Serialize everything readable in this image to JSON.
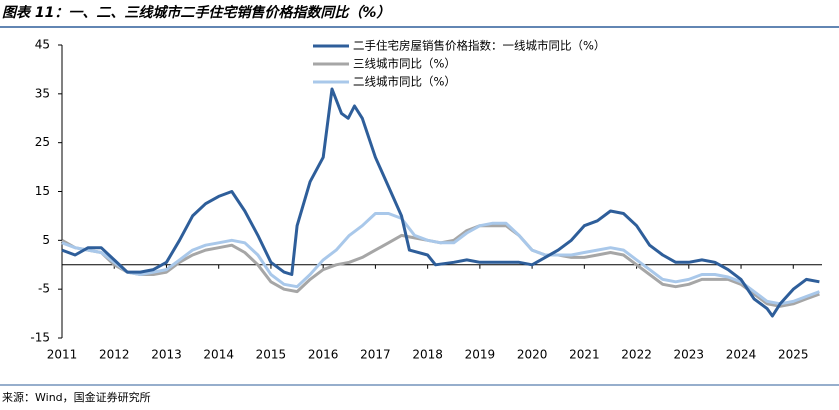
{
  "chart_data": {
    "type": "line",
    "title": "图表 11：一、二、三线城市二手住宅销售价格指数同比（%）",
    "source": "来源：Wind，国金证券研究所",
    "xlim": [
      2011,
      2025.55
    ],
    "xticks": [
      2011,
      2012,
      2013,
      2014,
      2015,
      2016,
      2017,
      2018,
      2019,
      2020,
      2021,
      2022,
      2023,
      2024,
      2025
    ],
    "ylim": [
      -15,
      45
    ],
    "yticks": [
      -15,
      -5,
      5,
      15,
      25,
      35,
      45
    ],
    "legend": "upper center",
    "series": [
      {
        "name": "二手住宅房屋销售价格指数：一线城市同比（%）",
        "color": "#2e5e9a",
        "width": 3,
        "x": [
          2011.0,
          2011.25,
          2011.5,
          2011.75,
          2012.0,
          2012.25,
          2012.5,
          2012.75,
          2013.0,
          2013.25,
          2013.5,
          2013.75,
          2014.0,
          2014.25,
          2014.5,
          2014.75,
          2015.0,
          2015.25,
          2015.4,
          2015.5,
          2015.75,
          2016.0,
          2016.17,
          2016.35,
          2016.48,
          2016.6,
          2016.75,
          2017.0,
          2017.25,
          2017.5,
          2017.65,
          2018.0,
          2018.15,
          2018.5,
          2018.75,
          2019.0,
          2019.5,
          2019.75,
          2020.0,
          2020.25,
          2020.5,
          2020.75,
          2021.0,
          2021.25,
          2021.5,
          2021.75,
          2022.0,
          2022.25,
          2022.5,
          2022.75,
          2023.0,
          2023.25,
          2023.5,
          2023.75,
          2024.0,
          2024.25,
          2024.5,
          2024.6,
          2024.75,
          2025.0,
          2025.25,
          2025.5
        ],
        "values": [
          3,
          2,
          3.5,
          3.5,
          1,
          -1.5,
          -1.5,
          -1,
          0.5,
          5,
          10,
          12.5,
          14,
          15,
          11,
          6,
          0.5,
          -1.5,
          -2,
          8,
          17,
          22,
          36,
          31,
          30,
          32.5,
          30,
          22,
          16,
          10,
          3,
          2,
          0,
          0.5,
          1,
          0.5,
          0.5,
          0.5,
          0,
          1.5,
          3,
          5,
          8,
          9,
          11,
          10.5,
          8,
          4,
          2,
          0.5,
          0.5,
          1,
          0.5,
          -1,
          -3,
          -7,
          -9,
          -10.5,
          -8,
          -5,
          -3,
          -3.5
        ]
      },
      {
        "name": "三线城市同比（%）",
        "color": "#a6a6a6",
        "width": 3,
        "x": [
          2011.0,
          2011.25,
          2011.5,
          2011.75,
          2012.0,
          2012.25,
          2012.5,
          2012.75,
          2013.0,
          2013.25,
          2013.5,
          2013.75,
          2014.0,
          2014.25,
          2014.5,
          2014.75,
          2015.0,
          2015.25,
          2015.5,
          2015.75,
          2016.0,
          2016.25,
          2016.5,
          2016.75,
          2017.0,
          2017.25,
          2017.5,
          2017.75,
          2018.0,
          2018.25,
          2018.5,
          2018.75,
          2019.0,
          2019.25,
          2019.5,
          2019.75,
          2020.0,
          2020.25,
          2020.5,
          2020.75,
          2021.0,
          2021.25,
          2021.5,
          2021.75,
          2022.0,
          2022.25,
          2022.5,
          2022.75,
          2023.0,
          2023.25,
          2023.5,
          2023.75,
          2024.0,
          2024.25,
          2024.5,
          2024.75,
          2025.0,
          2025.25,
          2025.5
        ],
        "values": [
          5,
          3.5,
          3,
          2.5,
          0,
          -1.5,
          -2,
          -2,
          -1.5,
          0.5,
          2,
          3,
          3.5,
          4,
          2.5,
          0,
          -3.5,
          -5,
          -5.5,
          -3,
          -1,
          0,
          0.5,
          1.5,
          3,
          4.5,
          6,
          5.5,
          5,
          4.5,
          5,
          7,
          8,
          8,
          8,
          6,
          3,
          2,
          2,
          1.5,
          1.5,
          2,
          2.5,
          2,
          0,
          -2,
          -4,
          -4.5,
          -4,
          -3,
          -3,
          -3,
          -4,
          -6,
          -8,
          -8.5,
          -8,
          -7,
          -6
        ]
      },
      {
        "name": "二线城市同比（%）",
        "color": "#a9c8ea",
        "width": 3,
        "x": [
          2011.0,
          2011.25,
          2011.5,
          2011.75,
          2012.0,
          2012.25,
          2012.5,
          2012.75,
          2013.0,
          2013.25,
          2013.5,
          2013.75,
          2014.0,
          2014.25,
          2014.5,
          2014.75,
          2015.0,
          2015.25,
          2015.5,
          2015.75,
          2016.0,
          2016.25,
          2016.5,
          2016.75,
          2017.0,
          2017.25,
          2017.5,
          2017.75,
          2018.0,
          2018.25,
          2018.5,
          2018.75,
          2019.0,
          2019.25,
          2019.5,
          2019.75,
          2020.0,
          2020.25,
          2020.5,
          2020.75,
          2021.0,
          2021.25,
          2021.5,
          2021.75,
          2022.0,
          2022.25,
          2022.5,
          2022.75,
          2023.0,
          2023.25,
          2023.5,
          2023.75,
          2024.0,
          2024.25,
          2024.5,
          2024.75,
          2025.0,
          2025.25,
          2025.5
        ],
        "values": [
          4.5,
          3.5,
          3,
          2.5,
          0.5,
          -1.5,
          -2,
          -1.5,
          -1,
          1,
          3,
          4,
          4.5,
          5,
          4.5,
          2,
          -2,
          -4,
          -4.5,
          -2,
          1,
          3,
          6,
          8,
          10.5,
          10.5,
          9.5,
          6,
          5,
          4.5,
          4.5,
          6.5,
          8,
          8.5,
          8.5,
          6,
          3,
          2,
          2,
          2,
          2.5,
          3,
          3.5,
          3,
          1,
          -1,
          -3,
          -3.5,
          -3,
          -2,
          -2,
          -2.5,
          -3.5,
          -5.5,
          -7.5,
          -8,
          -7.5,
          -6.5,
          -5.5
        ]
      }
    ]
  }
}
